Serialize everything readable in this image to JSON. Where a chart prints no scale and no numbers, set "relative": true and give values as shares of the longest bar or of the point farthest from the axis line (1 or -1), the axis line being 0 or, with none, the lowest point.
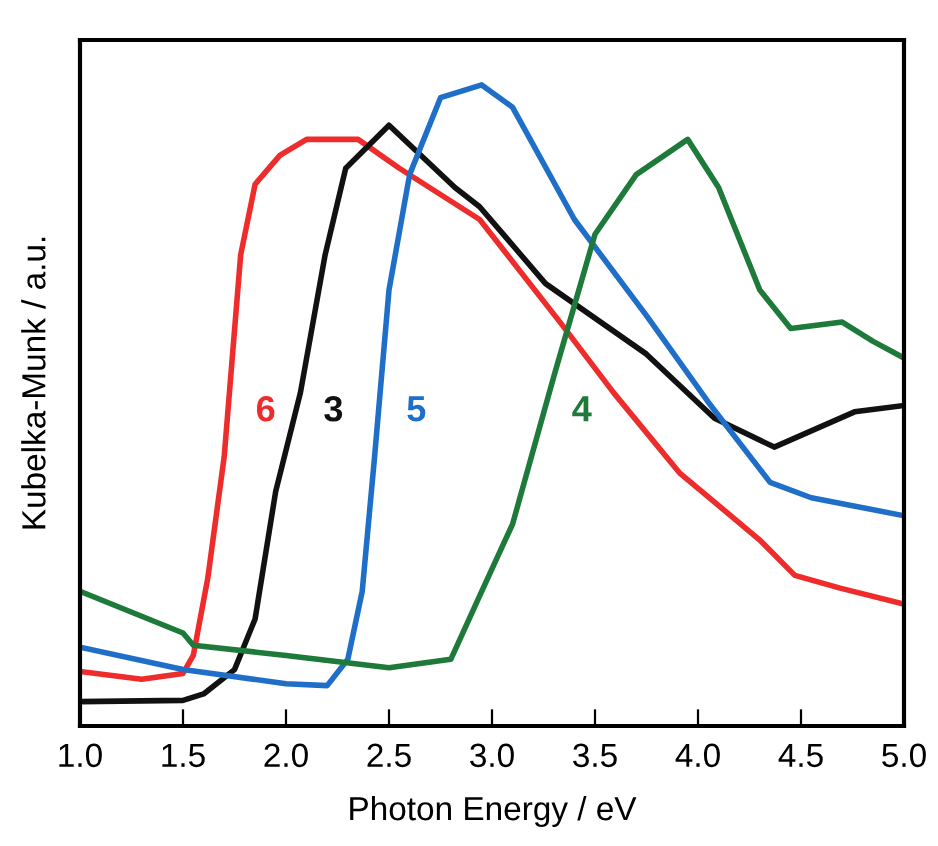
{
  "chart_data": {
    "type": "line",
    "relative": true,
    "xlabel": "Photon Energy / eV",
    "ylabel": "Kubelka-Munk / a.u.",
    "xlim": [
      1.0,
      5.0
    ],
    "xticks": [
      {
        "value": 1.0,
        "label": "1.0"
      },
      {
        "value": 1.5,
        "label": "1.5"
      },
      {
        "value": 2.0,
        "label": "2.0"
      },
      {
        "value": 2.5,
        "label": "2.5"
      },
      {
        "value": 3.0,
        "label": "3.0"
      },
      {
        "value": 3.5,
        "label": "3.5"
      },
      {
        "value": 4.0,
        "label": "4.0"
      },
      {
        "value": 4.5,
        "label": "4.5"
      },
      {
        "value": 5.0,
        "label": "5.0"
      }
    ],
    "grid": false,
    "legend": false,
    "marker": "none",
    "line_style": "solid",
    "series": [
      {
        "name": "6",
        "color": "#ee2c2c",
        "x": [
          1.0,
          1.3,
          1.5,
          1.55,
          1.62,
          1.7,
          1.78,
          1.85,
          1.97,
          2.1,
          2.35,
          2.55,
          2.94,
          3.33,
          3.59,
          3.91,
          4.3,
          4.47,
          4.69,
          5.0
        ],
        "values": [
          0.085,
          0.073,
          0.082,
          0.11,
          0.23,
          0.42,
          0.735,
          0.845,
          0.89,
          0.915,
          0.915,
          0.87,
          0.79,
          0.63,
          0.52,
          0.395,
          0.29,
          0.235,
          0.215,
          0.19
        ]
      },
      {
        "name": "3",
        "color": "#111111",
        "x": [
          1.0,
          1.5,
          1.6,
          1.75,
          1.85,
          1.95,
          2.07,
          2.19,
          2.29,
          2.5,
          2.82,
          2.94,
          3.26,
          3.75,
          4.08,
          4.37,
          4.76,
          5.0
        ],
        "values": [
          0.038,
          0.04,
          0.05,
          0.088,
          0.167,
          0.366,
          0.52,
          0.735,
          0.87,
          0.937,
          0.84,
          0.81,
          0.69,
          0.58,
          0.48,
          0.435,
          0.49,
          0.5
        ]
      },
      {
        "name": "5",
        "color": "#1f6fc8",
        "x": [
          1.0,
          1.5,
          2.0,
          2.2,
          2.3,
          2.37,
          2.43,
          2.5,
          2.6,
          2.75,
          2.95,
          3.1,
          3.4,
          3.75,
          4.05,
          4.35,
          4.55,
          5.0
        ],
        "values": [
          0.123,
          0.088,
          0.066,
          0.063,
          0.104,
          0.21,
          0.42,
          0.68,
          0.86,
          0.98,
          1.0,
          0.965,
          0.79,
          0.64,
          0.505,
          0.38,
          0.356,
          0.328
        ]
      },
      {
        "name": "4",
        "color": "#1e7a3a",
        "x": [
          1.0,
          1.5,
          1.55,
          2.0,
          2.5,
          2.8,
          2.95,
          3.1,
          3.3,
          3.5,
          3.7,
          3.95,
          4.1,
          4.3,
          4.45,
          4.7,
          4.85,
          5.0
        ],
        "values": [
          0.21,
          0.145,
          0.126,
          0.11,
          0.091,
          0.104,
          0.21,
          0.315,
          0.545,
          0.767,
          0.86,
          0.915,
          0.84,
          0.68,
          0.62,
          0.63,
          0.6,
          0.574
        ]
      }
    ]
  }
}
